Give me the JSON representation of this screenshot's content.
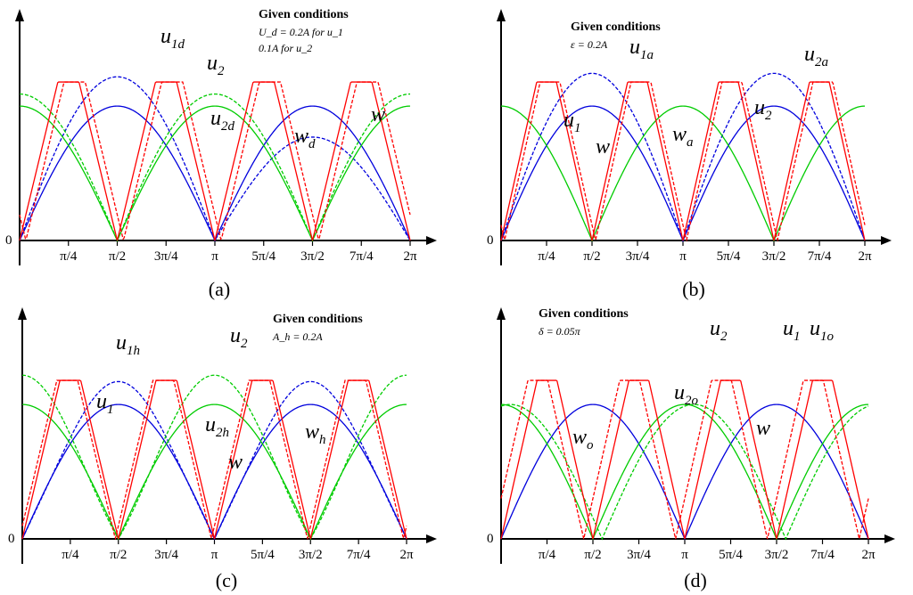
{
  "chart_data": [
    {
      "panel": "(a)",
      "type": "line",
      "x_ticks": [
        "π/4",
        "π/2",
        "3π/4",
        "π",
        "5π/4",
        "3π/2",
        "7π/4",
        "2π"
      ],
      "y_origin_label": "0",
      "xlim": [
        0,
        6.2832
      ],
      "ylim": [
        0,
        1.25
      ],
      "conditions_title": "Given conditions",
      "conditions_lines": [
        "U_d = 0.2A for u_1",
        "0.1A for u_2"
      ],
      "series": [
        {
          "name": "u1",
          "color": "#0000dd",
          "dashed": false,
          "kind": "abs_sin_phase",
          "amp": 1.0,
          "phase": 0
        },
        {
          "name": "u1d",
          "color": "#0000dd",
          "dashed": true,
          "kind": "abs_sin_phase_offset",
          "amp": 1.0,
          "offset": 0.2,
          "phase": 0
        },
        {
          "name": "u2",
          "color": "#00cc00",
          "dashed": false,
          "kind": "abs_cos",
          "amp": 1.0
        },
        {
          "name": "u2d",
          "color": "#00cc00",
          "dashed": true,
          "kind": "abs_cos_offset",
          "amp": 1.0,
          "offset": 0.1
        },
        {
          "name": "w",
          "color": "#ff0000",
          "dashed": false,
          "kind": "triangle"
        },
        {
          "name": "wd",
          "color": "#ff0000",
          "dashed": true,
          "kind": "triangle_shift",
          "shift": 0.12
        }
      ],
      "labels": [
        {
          "main": "u",
          "sub": "1d"
        },
        {
          "main": "u",
          "sub": "2"
        },
        {
          "main": "u",
          "sub": "2d"
        },
        {
          "main": "w",
          "sub": "d"
        },
        {
          "main": "w",
          "sub": ""
        }
      ]
    },
    {
      "panel": "(b)",
      "type": "line",
      "x_ticks": [
        "π/4",
        "π/2",
        "3π/4",
        "π",
        "5π/4",
        "3π/2",
        "7π/4",
        "2π"
      ],
      "y_origin_label": "0",
      "conditions_title": "Given conditions",
      "conditions_lines": [
        "ε = 0.2A"
      ],
      "series": [
        {
          "name": "u1",
          "color": "#0000dd",
          "dashed": false
        },
        {
          "name": "u1a",
          "color": "#0000dd",
          "dashed": true
        },
        {
          "name": "u2",
          "color": "#0000dd",
          "dashed": false
        },
        {
          "name": "u2a",
          "color": "#0000dd",
          "dashed": true
        },
        {
          "name": "w",
          "color": "#ff0000",
          "dashed": false
        },
        {
          "name": "wa",
          "color": "#ff0000",
          "dashed": true
        }
      ],
      "labels": [
        {
          "main": "u",
          "sub": "1a"
        },
        {
          "main": "u",
          "sub": "2a"
        },
        {
          "main": "u",
          "sub": "1"
        },
        {
          "main": "u",
          "sub": "2"
        },
        {
          "main": "w",
          "sub": ""
        },
        {
          "main": "w",
          "sub": "a"
        }
      ]
    },
    {
      "panel": "(c)",
      "type": "line",
      "x_ticks": [
        "π/4",
        "π/2",
        "3π/4",
        "π",
        "5π/4",
        "3π/2",
        "7π/4",
        "2π"
      ],
      "y_origin_label": "0",
      "conditions_title": "Given conditions",
      "conditions_lines": [
        "A_h = 0.2A"
      ],
      "series": [
        {
          "name": "u1",
          "color": "#0000dd",
          "dashed": false
        },
        {
          "name": "u1h",
          "color": "#0000dd",
          "dashed": true
        },
        {
          "name": "u2",
          "color": "#00cc00",
          "dashed": false
        },
        {
          "name": "u2h",
          "color": "#00cc00",
          "dashed": true
        },
        {
          "name": "w",
          "color": "#ff0000",
          "dashed": false
        },
        {
          "name": "wh",
          "color": "#ff0000",
          "dashed": true
        }
      ],
      "labels": [
        {
          "main": "u",
          "sub": "1h"
        },
        {
          "main": "u",
          "sub": "2"
        },
        {
          "main": "u",
          "sub": "1"
        },
        {
          "main": "u",
          "sub": "2h"
        },
        {
          "main": "w",
          "sub": "h"
        },
        {
          "main": "w",
          "sub": ""
        }
      ]
    },
    {
      "panel": "(d)",
      "type": "line",
      "x_ticks": [
        "π/4",
        "π/2",
        "3π/4",
        "π",
        "5π/4",
        "3π/2",
        "7π/4",
        "2π"
      ],
      "y_origin_label": "0",
      "conditions_title": "Given conditions",
      "conditions_lines": [
        "δ = 0.05π"
      ],
      "series": [
        {
          "name": "u1 = u1o",
          "color": "#0000dd",
          "dashed": false
        },
        {
          "name": "u2",
          "color": "#00cc00",
          "dashed": false
        },
        {
          "name": "u2o",
          "color": "#00cc00",
          "dashed": true
        },
        {
          "name": "w",
          "color": "#ff0000",
          "dashed": false
        },
        {
          "name": "wo",
          "color": "#ff0000",
          "dashed": true
        }
      ],
      "labels": [
        {
          "main": "u",
          "sub": "2"
        },
        {
          "main": "u",
          "sub": "1"
        },
        {
          "main": "u",
          "sub": "1o"
        },
        {
          "main": "u",
          "sub": "2o"
        },
        {
          "main": "w",
          "sub": "o"
        },
        {
          "main": "w",
          "sub": ""
        }
      ]
    }
  ],
  "colors": {
    "u1": "#0000dd",
    "u2": "#00cc00",
    "w": "#ff0000",
    "axis": "#000000"
  }
}
